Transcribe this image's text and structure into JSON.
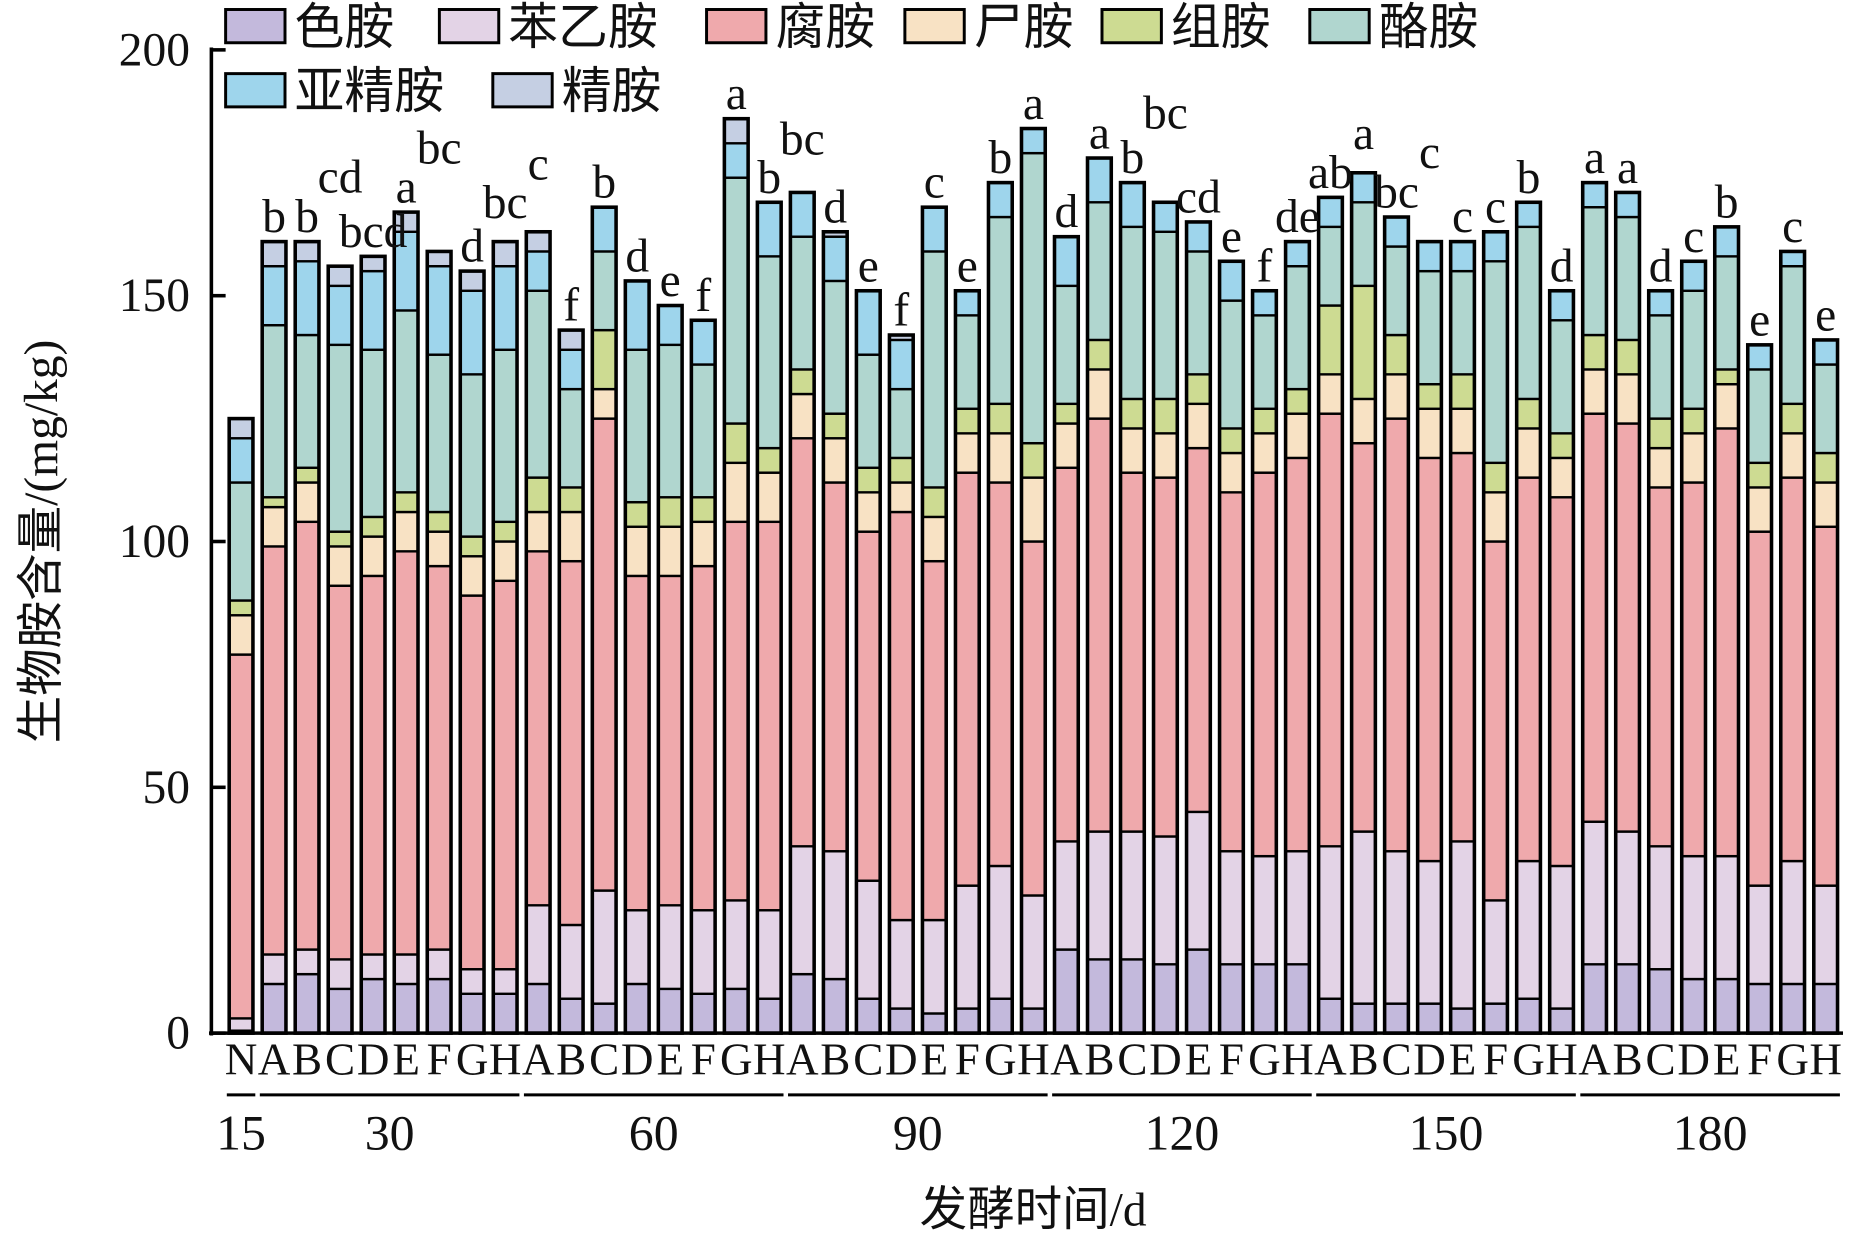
{
  "chart_data": {
    "type": "bar",
    "stacked": true,
    "title": "",
    "xlabel": "发酵时间/d",
    "ylabel": "生物胺含量/(mg/kg)",
    "ylim": [
      0,
      200
    ],
    "yticks": [
      0,
      50,
      100,
      150,
      200
    ],
    "legend_position": "top-left",
    "series": [
      {
        "name": "色胺",
        "color": "#c3b9dc"
      },
      {
        "name": "苯乙胺",
        "color": "#e3d3e6"
      },
      {
        "name": "腐胺",
        "color": "#efa9ac"
      },
      {
        "name": "尸胺",
        "color": "#f8e2c4"
      },
      {
        "name": "组胺",
        "color": "#cddb92"
      },
      {
        "name": "酪胺",
        "color": "#b0d6cf"
      },
      {
        "name": "亚精胺",
        "color": "#9ed5ec"
      },
      {
        "name": "精胺",
        "color": "#c5cfe3"
      }
    ],
    "value_encoding": "cumulative stack tops in mg/kg, in series order",
    "groups": [
      {
        "day": "15",
        "bars": [
          {
            "label": "N",
            "sig": "",
            "cum": [
              0.5,
              3,
              77,
              85,
              88,
              112,
              121,
              125
            ]
          }
        ]
      },
      {
        "day": "30",
        "bars": [
          {
            "label": "A",
            "sig": "b",
            "cum": [
              10,
              16,
              99,
              107,
              109,
              144,
              156,
              161
            ]
          },
          {
            "label": "B",
            "sig": "b",
            "cum": [
              12,
              17,
              104,
              112,
              115,
              142,
              157,
              161
            ]
          },
          {
            "label": "C",
            "sig": "cd",
            "cum": [
              9,
              15,
              91,
              99,
              102,
              140,
              152,
              156
            ]
          },
          {
            "label": "D",
            "sig": "bcd",
            "cum": [
              11,
              16,
              93,
              101,
              105,
              139,
              155,
              158
            ]
          },
          {
            "label": "E",
            "sig": "a",
            "cum": [
              10,
              16,
              98,
              106,
              110,
              147,
              163,
              167
            ]
          },
          {
            "label": "F",
            "sig": "bc",
            "cum": [
              11,
              17,
              95,
              102,
              106,
              138,
              156,
              159
            ]
          },
          {
            "label": "G",
            "sig": "d",
            "cum": [
              8,
              13,
              89,
              97,
              101,
              134,
              151,
              155
            ]
          },
          {
            "label": "H",
            "sig": "bc",
            "cum": [
              8,
              13,
              92,
              100,
              104,
              139,
              156,
              161
            ]
          }
        ]
      },
      {
        "day": "60",
        "bars": [
          {
            "label": "A",
            "sig": "c",
            "cum": [
              10,
              26,
              98,
              106,
              113,
              151,
              159,
              163
            ]
          },
          {
            "label": "B",
            "sig": "f",
            "cum": [
              7,
              22,
              96,
              106,
              111,
              131,
              139,
              143
            ]
          },
          {
            "label": "C",
            "sig": "b",
            "cum": [
              6,
              29,
              125,
              131,
              143,
              159,
              168,
              168
            ]
          },
          {
            "label": "D",
            "sig": "d",
            "cum": [
              10,
              25,
              93,
              103,
              108,
              139,
              153,
              153
            ]
          },
          {
            "label": "E",
            "sig": "e",
            "cum": [
              9,
              26,
              93,
              103,
              109,
              140,
              148,
              148
            ]
          },
          {
            "label": "F",
            "sig": "f",
            "cum": [
              8,
              25,
              95,
              104,
              109,
              136,
              145,
              145
            ]
          },
          {
            "label": "G",
            "sig": "a",
            "cum": [
              9,
              27,
              104,
              116,
              124,
              174,
              181,
              186
            ]
          },
          {
            "label": "H",
            "sig": "b",
            "cum": [
              7,
              25,
              104,
              114,
              119,
              158,
              169,
              169
            ]
          }
        ]
      },
      {
        "day": "90",
        "bars": [
          {
            "label": "A",
            "sig": "bc",
            "cum": [
              12,
              38,
              121,
              130,
              135,
              162,
              171,
              171
            ]
          },
          {
            "label": "B",
            "sig": "d",
            "cum": [
              11,
              37,
              112,
              121,
              126,
              153,
              162,
              163
            ]
          },
          {
            "label": "C",
            "sig": "e",
            "cum": [
              7,
              31,
              102,
              110,
              115,
              138,
              151,
              151
            ]
          },
          {
            "label": "D",
            "sig": "f",
            "cum": [
              5,
              23,
              106,
              112,
              117,
              131,
              141,
              142
            ]
          },
          {
            "label": "E",
            "sig": "c",
            "cum": [
              4,
              23,
              96,
              105,
              111,
              159,
              168,
              168
            ]
          },
          {
            "label": "F",
            "sig": "e",
            "cum": [
              5,
              30,
              114,
              122,
              127,
              146,
              151,
              151
            ]
          },
          {
            "label": "G",
            "sig": "b",
            "cum": [
              7,
              34,
              112,
              122,
              128,
              166,
              173,
              173
            ]
          },
          {
            "label": "H",
            "sig": "a",
            "cum": [
              5,
              28,
              100,
              113,
              120,
              179,
              184,
              184
            ]
          }
        ]
      },
      {
        "day": "120",
        "bars": [
          {
            "label": "A",
            "sig": "d",
            "cum": [
              17,
              39,
              115,
              124,
              128,
              152,
              162,
              162
            ]
          },
          {
            "label": "B",
            "sig": "a",
            "cum": [
              15,
              41,
              125,
              135,
              141,
              169,
              178,
              178
            ]
          },
          {
            "label": "C",
            "sig": "b",
            "cum": [
              15,
              41,
              114,
              123,
              129,
              164,
              173,
              173
            ]
          },
          {
            "label": "D",
            "sig": "bc",
            "cum": [
              14,
              40,
              113,
              122,
              129,
              163,
              169,
              169
            ]
          },
          {
            "label": "E",
            "sig": "cd",
            "cum": [
              17,
              45,
              119,
              128,
              134,
              159,
              165,
              165
            ]
          },
          {
            "label": "F",
            "sig": "e",
            "cum": [
              14,
              37,
              110,
              118,
              123,
              149,
              157,
              157
            ]
          },
          {
            "label": "G",
            "sig": "f",
            "cum": [
              14,
              36,
              114,
              122,
              127,
              146,
              151,
              151
            ]
          },
          {
            "label": "H",
            "sig": "de",
            "cum": [
              14,
              37,
              117,
              126,
              131,
              156,
              161,
              161
            ]
          }
        ]
      },
      {
        "day": "150",
        "bars": [
          {
            "label": "A",
            "sig": "ab",
            "cum": [
              7,
              38,
              126,
              134,
              148,
              164,
              170,
              170
            ]
          },
          {
            "label": "B",
            "sig": "a",
            "cum": [
              6,
              41,
              120,
              129,
              152,
              169,
              175,
              175
            ]
          },
          {
            "label": "C",
            "sig": "bc",
            "cum": [
              6,
              37,
              125,
              134,
              142,
              160,
              166,
              166
            ]
          },
          {
            "label": "D",
            "sig": "c",
            "cum": [
              6,
              35,
              117,
              127,
              132,
              155,
              161,
              161
            ]
          },
          {
            "label": "E",
            "sig": "c",
            "cum": [
              5,
              39,
              118,
              127,
              134,
              155,
              161,
              161
            ]
          },
          {
            "label": "F",
            "sig": "c",
            "cum": [
              6,
              27,
              100,
              110,
              116,
              157,
              163,
              163
            ]
          },
          {
            "label": "G",
            "sig": "b",
            "cum": [
              7,
              35,
              113,
              123,
              129,
              164,
              169,
              169
            ]
          },
          {
            "label": "H",
            "sig": "d",
            "cum": [
              5,
              34,
              109,
              117,
              122,
              145,
              151,
              151
            ]
          }
        ]
      },
      {
        "day": "180",
        "bars": [
          {
            "label": "A",
            "sig": "a",
            "cum": [
              14,
              43,
              126,
              135,
              142,
              168,
              173,
              173
            ]
          },
          {
            "label": "B",
            "sig": "a",
            "cum": [
              14,
              41,
              124,
              134,
              141,
              166,
              171,
              171
            ]
          },
          {
            "label": "C",
            "sig": "d",
            "cum": [
              13,
              38,
              111,
              119,
              125,
              146,
              151,
              151
            ]
          },
          {
            "label": "D",
            "sig": "c",
            "cum": [
              11,
              36,
              112,
              122,
              127,
              151,
              157,
              157
            ]
          },
          {
            "label": "E",
            "sig": "b",
            "cum": [
              11,
              36,
              123,
              132,
              135,
              158,
              164,
              164
            ]
          },
          {
            "label": "F",
            "sig": "e",
            "cum": [
              10,
              30,
              102,
              111,
              116,
              135,
              140,
              140
            ]
          },
          {
            "label": "G",
            "sig": "c",
            "cum": [
              10,
              35,
              113,
              122,
              128,
              156,
              159,
              159
            ]
          },
          {
            "label": "H",
            "sig": "e",
            "cum": [
              10,
              30,
              103,
              112,
              118,
              136,
              141,
              141
            ]
          }
        ]
      }
    ]
  }
}
